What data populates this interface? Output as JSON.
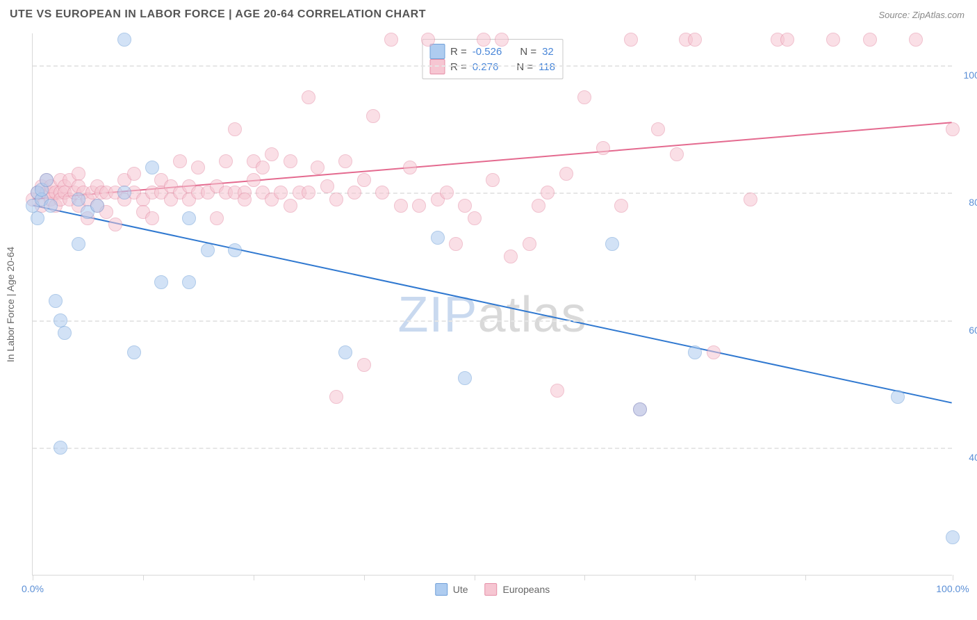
{
  "title": "UTE VS EUROPEAN IN LABOR FORCE | AGE 20-64 CORRELATION CHART",
  "source": "Source: ZipAtlas.com",
  "ylabel": "In Labor Force | Age 20-64",
  "watermark_a": "ZIP",
  "watermark_b": "atlas",
  "watermark_color_a": "#c9d9ef",
  "watermark_color_b": "#d9d9d9",
  "chart": {
    "type": "scatter",
    "xlim": [
      0,
      100
    ],
    "ylim": [
      20,
      105
    ],
    "x_ticks": [
      0,
      12,
      24,
      36,
      48,
      60,
      72,
      84,
      100
    ],
    "x_tick_labels": {
      "0": "0.0%",
      "100": "100.0%"
    },
    "y_gridlines": [
      40,
      60,
      80,
      100
    ],
    "y_tick_labels": {
      "40": "40.0%",
      "60": "60.0%",
      "80": "80.0%",
      "100": "100.0%"
    },
    "background_color": "#ffffff",
    "grid_color": "#e6e6e6",
    "axis_color": "#d8d8d8",
    "axis_label_color": "#5b8fd6",
    "marker_radius": 10,
    "marker_opacity": 0.55,
    "series": [
      {
        "name": "Ute",
        "fill": "#aeccf0",
        "stroke": "#6f9fd8",
        "r_value": "-0.526",
        "n_value": "32",
        "trend": {
          "x1": 0,
          "y1": 78,
          "x2": 100,
          "y2": 47,
          "width": 2,
          "color": "#2f78d0"
        },
        "points": [
          [
            0,
            78
          ],
          [
            0.5,
            80
          ],
          [
            0.5,
            76
          ],
          [
            1,
            79
          ],
          [
            1,
            80.5
          ],
          [
            1.5,
            82
          ],
          [
            2,
            78
          ],
          [
            2.5,
            63
          ],
          [
            3,
            40
          ],
          [
            3,
            60
          ],
          [
            3.5,
            58
          ],
          [
            5,
            79
          ],
          [
            5,
            72
          ],
          [
            6,
            77
          ],
          [
            7,
            78
          ],
          [
            10,
            104
          ],
          [
            10,
            80
          ],
          [
            11,
            55
          ],
          [
            13,
            84
          ],
          [
            14,
            66
          ],
          [
            17,
            66
          ],
          [
            17,
            76
          ],
          [
            19,
            71
          ],
          [
            22,
            71
          ],
          [
            34,
            55
          ],
          [
            44,
            73
          ],
          [
            47,
            51
          ],
          [
            63,
            72
          ],
          [
            66,
            46
          ],
          [
            72,
            55
          ],
          [
            94,
            48
          ],
          [
            100,
            26
          ]
        ]
      },
      {
        "name": "Europeans",
        "fill": "#f6c6d2",
        "stroke": "#e58fa7",
        "r_value": "0.276",
        "n_value": "118",
        "trend": {
          "x1": 0,
          "y1": 79,
          "x2": 100,
          "y2": 91,
          "width": 2,
          "color": "#e46a8f"
        },
        "points": [
          [
            0,
            79
          ],
          [
            0.5,
            80
          ],
          [
            1,
            81
          ],
          [
            1,
            78
          ],
          [
            1.5,
            80
          ],
          [
            1.5,
            82
          ],
          [
            2,
            80
          ],
          [
            2,
            79
          ],
          [
            2,
            81
          ],
          [
            2.5,
            80
          ],
          [
            2.5,
            78
          ],
          [
            3,
            82
          ],
          [
            3,
            80
          ],
          [
            3,
            79
          ],
          [
            3.5,
            81
          ],
          [
            3.5,
            80
          ],
          [
            4,
            82
          ],
          [
            4,
            79
          ],
          [
            4.5,
            80
          ],
          [
            5,
            83
          ],
          [
            5,
            78
          ],
          [
            5,
            81
          ],
          [
            5.5,
            80
          ],
          [
            6,
            79
          ],
          [
            6,
            76
          ],
          [
            6.5,
            80
          ],
          [
            7,
            81
          ],
          [
            7,
            78
          ],
          [
            7.5,
            80
          ],
          [
            8,
            77
          ],
          [
            8,
            80
          ],
          [
            9,
            75
          ],
          [
            9,
            80
          ],
          [
            10,
            79
          ],
          [
            10,
            82
          ],
          [
            11,
            80
          ],
          [
            11,
            83
          ],
          [
            12,
            79
          ],
          [
            12,
            77
          ],
          [
            13,
            80
          ],
          [
            13,
            76
          ],
          [
            14,
            82
          ],
          [
            14,
            80
          ],
          [
            15,
            81
          ],
          [
            15,
            79
          ],
          [
            16,
            80
          ],
          [
            16,
            85
          ],
          [
            17,
            81
          ],
          [
            17,
            79
          ],
          [
            18,
            80
          ],
          [
            18,
            84
          ],
          [
            19,
            80
          ],
          [
            20,
            76
          ],
          [
            20,
            81
          ],
          [
            21,
            80
          ],
          [
            21,
            85
          ],
          [
            22,
            80
          ],
          [
            22,
            90
          ],
          [
            23,
            80
          ],
          [
            23,
            79
          ],
          [
            24,
            82
          ],
          [
            24,
            85
          ],
          [
            25,
            84
          ],
          [
            25,
            80
          ],
          [
            26,
            86
          ],
          [
            26,
            79
          ],
          [
            27,
            80
          ],
          [
            28,
            85
          ],
          [
            28,
            78
          ],
          [
            29,
            80
          ],
          [
            30,
            95
          ],
          [
            30,
            80
          ],
          [
            31,
            84
          ],
          [
            32,
            81
          ],
          [
            33,
            79
          ],
          [
            33,
            48
          ],
          [
            34,
            85
          ],
          [
            35,
            80
          ],
          [
            36,
            82
          ],
          [
            36,
            53
          ],
          [
            37,
            92
          ],
          [
            38,
            80
          ],
          [
            39,
            104
          ],
          [
            40,
            78
          ],
          [
            41,
            84
          ],
          [
            42,
            78
          ],
          [
            43,
            104
          ],
          [
            44,
            79
          ],
          [
            45,
            80
          ],
          [
            46,
            72
          ],
          [
            47,
            78
          ],
          [
            48,
            76
          ],
          [
            49,
            104
          ],
          [
            50,
            82
          ],
          [
            51,
            104
          ],
          [
            52,
            70
          ],
          [
            54,
            72
          ],
          [
            55,
            78
          ],
          [
            56,
            80
          ],
          [
            57,
            49
          ],
          [
            58,
            83
          ],
          [
            60,
            95
          ],
          [
            62,
            87
          ],
          [
            64,
            78
          ],
          [
            65,
            104
          ],
          [
            66,
            46
          ],
          [
            68,
            90
          ],
          [
            70,
            86
          ],
          [
            71,
            104
          ],
          [
            72,
            104
          ],
          [
            74,
            55
          ],
          [
            78,
            79
          ],
          [
            81,
            104
          ],
          [
            82,
            104
          ],
          [
            87,
            104
          ],
          [
            91,
            104
          ],
          [
            96,
            104
          ],
          [
            100,
            90
          ]
        ]
      }
    ]
  },
  "legend_top": {
    "r_label": "R =",
    "n_label": "N ="
  },
  "legend_bottom": [
    {
      "label": "Ute",
      "fill": "#aeccf0",
      "stroke": "#6f9fd8"
    },
    {
      "label": "Europeans",
      "fill": "#f6c6d2",
      "stroke": "#e58fa7"
    }
  ]
}
